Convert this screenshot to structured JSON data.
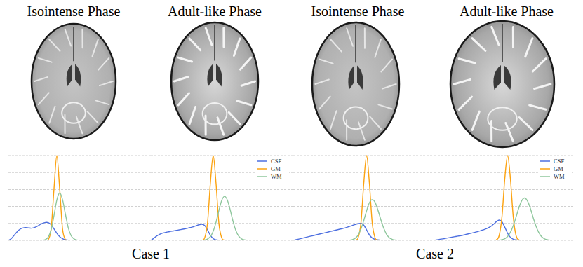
{
  "chart_data": [
    {
      "type": "line",
      "title": "Isointense Phase",
      "xlim": [
        0,
        200
      ],
      "ylim": [
        0,
        5
      ],
      "yticks": [
        0,
        1,
        2,
        3,
        4,
        5
      ],
      "grid": true,
      "tick_labels": false,
      "x": [
        0,
        4,
        8,
        12,
        16,
        20,
        24,
        28,
        32,
        36,
        40,
        44,
        48,
        52,
        56,
        60,
        64,
        68,
        72,
        76,
        80,
        84,
        88,
        92,
        96,
        100,
        104,
        108,
        112,
        116,
        120,
        124,
        128,
        132,
        136,
        140,
        144,
        148,
        152,
        156,
        160,
        164,
        168,
        172,
        176,
        180
      ],
      "series": [
        {
          "name": "CSF",
          "color": "#4d6fe0",
          "values": [
            0,
            0.1,
            0.3,
            0.5,
            0.65,
            0.73,
            0.76,
            0.74,
            0.72,
            0.75,
            0.82,
            0.92,
            1.01,
            1.06,
            1.05,
            0.92,
            0.68,
            0.42,
            0.22,
            0.1,
            0.04,
            0.01,
            0,
            0,
            0,
            0,
            0,
            0,
            0,
            0,
            0,
            0,
            0,
            0,
            0,
            0,
            0,
            0,
            0,
            0,
            0,
            0,
            0,
            0,
            0,
            0
          ]
        },
        {
          "name": "GM",
          "color": "#fca311",
          "values": [
            0,
            0,
            0,
            0,
            0,
            0,
            0,
            0,
            0,
            0,
            0,
            0,
            0,
            0,
            0.05,
            0.68,
            3.03,
            5,
            3.03,
            0.68,
            0.05,
            0,
            0,
            0,
            0,
            0,
            0,
            0,
            0,
            0,
            0,
            0,
            0,
            0,
            0,
            0,
            0,
            0,
            0,
            0,
            0,
            0,
            0,
            0,
            0,
            0
          ]
        },
        {
          "name": "WM",
          "color": "#8fc79d",
          "values": [
            0,
            0,
            0,
            0,
            0,
            0,
            0,
            0,
            0,
            0,
            0,
            0,
            0.01,
            0.05,
            0.2,
            0.64,
            1.46,
            2.38,
            2.8,
            2.4,
            1.55,
            0.75,
            0.28,
            0.09,
            0.02,
            0,
            0,
            0,
            0,
            0,
            0,
            0,
            0,
            0,
            0,
            0,
            0,
            0,
            0,
            0,
            0,
            0,
            0,
            0,
            0,
            0
          ]
        }
      ]
    },
    {
      "type": "line",
      "title": "Adult-like Phase",
      "xlim": [
        0,
        200
      ],
      "ylim": [
        0,
        5
      ],
      "yticks": [
        0,
        1,
        2,
        3,
        4,
        5
      ],
      "grid": true,
      "tick_labels": false,
      "legend": "upper right",
      "x": [
        0,
        4,
        8,
        12,
        16,
        20,
        24,
        28,
        32,
        36,
        40,
        44,
        48,
        52,
        56,
        60,
        64,
        68,
        72,
        76,
        80,
        84,
        88,
        92,
        96,
        100,
        104,
        108,
        112,
        116,
        120,
        124,
        128,
        132,
        136,
        140,
        144,
        148,
        152,
        156,
        160,
        164,
        168,
        172,
        176,
        180
      ],
      "series": [
        {
          "name": "CSF",
          "color": "#4d6fe0",
          "values": [
            0,
            0.12,
            0.25,
            0.35,
            0.42,
            0.46,
            0.5,
            0.53,
            0.56,
            0.59,
            0.62,
            0.65,
            0.68,
            0.72,
            0.76,
            0.8,
            0.86,
            0.92,
            0.95,
            0.88,
            0.62,
            0.3,
            0.1,
            0.03,
            0.01,
            0,
            0,
            0,
            0,
            0,
            0,
            0,
            0,
            0,
            0,
            0,
            0,
            0,
            0,
            0,
            0,
            0,
            0,
            0,
            0,
            0
          ]
        },
        {
          "name": "GM",
          "color": "#fca311",
          "values": [
            0,
            0,
            0,
            0,
            0,
            0,
            0,
            0,
            0,
            0,
            0,
            0,
            0,
            0,
            0,
            0,
            0,
            0,
            0,
            0.15,
            1.03,
            3.37,
            5,
            3.37,
            1.03,
            0.15,
            0.01,
            0,
            0,
            0,
            0,
            0,
            0,
            0,
            0,
            0,
            0,
            0,
            0,
            0,
            0,
            0,
            0,
            0,
            0,
            0
          ]
        },
        {
          "name": "WM",
          "color": "#8fc79d",
          "values": [
            0,
            0,
            0,
            0,
            0,
            0,
            0,
            0,
            0,
            0,
            0,
            0,
            0,
            0,
            0,
            0,
            0,
            0,
            0,
            0.02,
            0.08,
            0.22,
            0.54,
            1.07,
            1.75,
            2.36,
            2.6,
            2.38,
            1.8,
            1.12,
            0.58,
            0.25,
            0.09,
            0.03,
            0.01,
            0,
            0,
            0,
            0,
            0,
            0,
            0,
            0,
            0,
            0,
            0
          ]
        }
      ]
    },
    {
      "type": "line",
      "title": "Isointense Phase",
      "xlim": [
        0,
        200
      ],
      "ylim": [
        0,
        5
      ],
      "yticks": [
        0,
        1,
        2,
        3,
        4,
        5
      ],
      "grid": true,
      "tick_labels": false,
      "x": [
        0,
        4,
        8,
        12,
        16,
        20,
        24,
        28,
        32,
        36,
        40,
        44,
        48,
        52,
        56,
        60,
        64,
        68,
        72,
        76,
        80,
        84,
        88,
        92,
        96,
        100,
        104,
        108,
        112,
        116,
        120,
        124,
        128,
        132,
        136,
        140,
        144,
        148,
        152,
        156,
        160,
        164,
        168,
        172,
        176,
        180
      ],
      "series": [
        {
          "name": "CSF",
          "color": "#4d6fe0",
          "values": [
            0,
            0.04,
            0.08,
            0.12,
            0.16,
            0.2,
            0.24,
            0.28,
            0.32,
            0.36,
            0.4,
            0.44,
            0.48,
            0.52,
            0.56,
            0.6,
            0.64,
            0.68,
            0.72,
            0.77,
            0.82,
            0.88,
            0.94,
            0.98,
            1,
            0.9,
            0.62,
            0.32,
            0.14,
            0.06,
            0.03,
            0.01,
            0,
            0,
            0,
            0,
            0,
            0,
            0,
            0,
            0,
            0,
            0,
            0,
            0,
            0
          ]
        },
        {
          "name": "GM",
          "color": "#fca311",
          "values": [
            0,
            0,
            0,
            0,
            0,
            0,
            0,
            0,
            0,
            0,
            0,
            0,
            0,
            0,
            0,
            0,
            0,
            0,
            0,
            0,
            0,
            0,
            0,
            0.15,
            1.03,
            3.37,
            5,
            3.37,
            1.03,
            0.15,
            0.01,
            0,
            0,
            0,
            0,
            0,
            0,
            0,
            0,
            0,
            0,
            0,
            0,
            0,
            0,
            0
          ]
        },
        {
          "name": "WM",
          "color": "#8fc79d",
          "values": [
            0,
            0,
            0,
            0,
            0,
            0,
            0,
            0,
            0,
            0,
            0,
            0,
            0,
            0,
            0,
            0,
            0,
            0,
            0,
            0,
            0.01,
            0.05,
            0.13,
            0.32,
            0.67,
            1.17,
            1.74,
            2.22,
            2.4,
            2.25,
            1.8,
            1.25,
            0.75,
            0.38,
            0.17,
            0.07,
            0.02,
            0.01,
            0,
            0,
            0,
            0,
            0,
            0,
            0,
            0
          ]
        }
      ]
    },
    {
      "type": "line",
      "title": "Adult-like Phase",
      "xlim": [
        0,
        200
      ],
      "ylim": [
        0,
        5
      ],
      "yticks": [
        0,
        1,
        2,
        3,
        4,
        5
      ],
      "grid": true,
      "tick_labels": false,
      "legend": "upper right",
      "x": [
        0,
        4,
        8,
        12,
        16,
        20,
        24,
        28,
        32,
        36,
        40,
        44,
        48,
        52,
        56,
        60,
        64,
        68,
        72,
        76,
        80,
        84,
        88,
        92,
        96,
        100,
        104,
        108,
        112,
        116,
        120,
        124,
        128,
        132,
        136,
        140,
        144,
        148,
        152,
        156,
        160,
        164,
        168,
        172,
        176,
        180
      ],
      "series": [
        {
          "name": "CSF",
          "color": "#4d6fe0",
          "values": [
            0,
            0.03,
            0.06,
            0.09,
            0.12,
            0.15,
            0.18,
            0.21,
            0.24,
            0.27,
            0.3,
            0.34,
            0.38,
            0.42,
            0.46,
            0.5,
            0.55,
            0.6,
            0.66,
            0.73,
            0.82,
            0.95,
            1.1,
            1.2,
            1.1,
            0.78,
            0.42,
            0.18,
            0.07,
            0.03,
            0.01,
            0,
            0,
            0,
            0,
            0,
            0,
            0,
            0,
            0,
            0,
            0,
            0,
            0,
            0,
            0
          ]
        },
        {
          "name": "GM",
          "color": "#fca311",
          "values": [
            0,
            0,
            0,
            0,
            0,
            0,
            0,
            0,
            0,
            0,
            0,
            0,
            0,
            0,
            0,
            0,
            0,
            0,
            0,
            0,
            0,
            0,
            0.03,
            0.28,
            1.39,
            3.63,
            5,
            3.63,
            1.39,
            0.28,
            0.03,
            0,
            0,
            0,
            0,
            0,
            0,
            0,
            0,
            0,
            0,
            0,
            0,
            0,
            0,
            0
          ]
        },
        {
          "name": "WM",
          "color": "#8fc79d",
          "values": [
            0,
            0,
            0,
            0,
            0,
            0,
            0,
            0,
            0,
            0,
            0,
            0,
            0,
            0,
            0,
            0,
            0,
            0,
            0,
            0,
            0,
            0,
            0,
            0.01,
            0.04,
            0.1,
            0.23,
            0.48,
            0.87,
            1.38,
            1.92,
            2.34,
            2.5,
            2.34,
            1.92,
            1.38,
            0.87,
            0.48,
            0.23,
            0.1,
            0.04,
            0.01,
            0,
            0,
            0,
            0
          ]
        }
      ]
    }
  ],
  "case_labels": [
    "Case 1",
    "Case 2"
  ]
}
